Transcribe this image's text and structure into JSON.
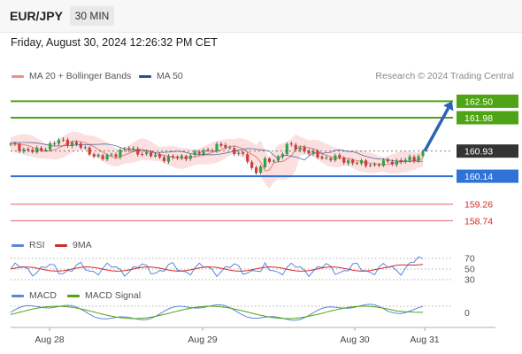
{
  "header": {
    "symbol": "EUR/JPY",
    "timeframe": "30 MIN"
  },
  "datetime": "Friday, August 30, 2024 12:26:32 PM CET",
  "legend": {
    "bollinger": "MA 20 + Bollinger Bands",
    "ma50": "MA 50",
    "credit": "Research © 2024 Trading Central",
    "rsi": "RSI",
    "rsi_ma": "9MA",
    "macd": "MACD",
    "macd_signal": "MACD Signal"
  },
  "colors": {
    "resistance": "#4ea415",
    "support": "#2f73d6",
    "target_low": "#e06070",
    "current": "#333333",
    "bull_candle": "#2aa745",
    "bear_candle": "#d43a3a",
    "bollinger_fill": "#fbd6d6",
    "ma20": "#e87a7a",
    "ma50": "#2a4f8c",
    "arrow": "#2d63b5",
    "rsi": "#5b86d9",
    "rsi_ma": "#d42a2a",
    "macd": "#5b86d9",
    "macd_signal": "#4ea415"
  },
  "chart_data": {
    "type": "candlestick",
    "instrument": "EUR/JPY",
    "timeframe": "30 MIN",
    "x_ticks": [
      "Aug 28",
      "Aug 29",
      "Aug 30",
      "Aug 31"
    ],
    "ylim": [
      158.5,
      162.9
    ],
    "levels": [
      {
        "value": 162.5,
        "label": "162.50",
        "kind": "resistance"
      },
      {
        "value": 161.98,
        "label": "161.98",
        "kind": "resistance"
      },
      {
        "value": 160.93,
        "label": "160.93",
        "kind": "current"
      },
      {
        "value": 160.14,
        "label": "160.14",
        "kind": "support"
      },
      {
        "value": 159.26,
        "label": "159.26",
        "kind": "target"
      },
      {
        "value": 158.74,
        "label": "158.74",
        "kind": "target"
      }
    ],
    "price_path": [
      161.15,
      161.1,
      161.0,
      160.92,
      160.95,
      161.05,
      161.2,
      161.25,
      161.2,
      161.1,
      160.95,
      160.8,
      160.7,
      160.8,
      160.9,
      161.0,
      160.95,
      160.85,
      160.8,
      160.75,
      160.7,
      160.72,
      160.75,
      160.8,
      160.88,
      160.95,
      161.05,
      161.1,
      161.0,
      160.85,
      160.7,
      160.2,
      160.6,
      160.6,
      160.75,
      161.1,
      161.05,
      161.0,
      160.85,
      160.75,
      160.7,
      160.72,
      160.65,
      160.6,
      160.55,
      160.52,
      160.5,
      160.55,
      160.6,
      160.6,
      160.65,
      160.7,
      160.9
    ],
    "arrow": {
      "from": 160.93,
      "to": 162.5
    },
    "rsi": {
      "levels": [
        70,
        50,
        30
      ],
      "labels": [
        "70",
        "50",
        "30"
      ]
    },
    "macd": {
      "zero_label": "0"
    }
  }
}
